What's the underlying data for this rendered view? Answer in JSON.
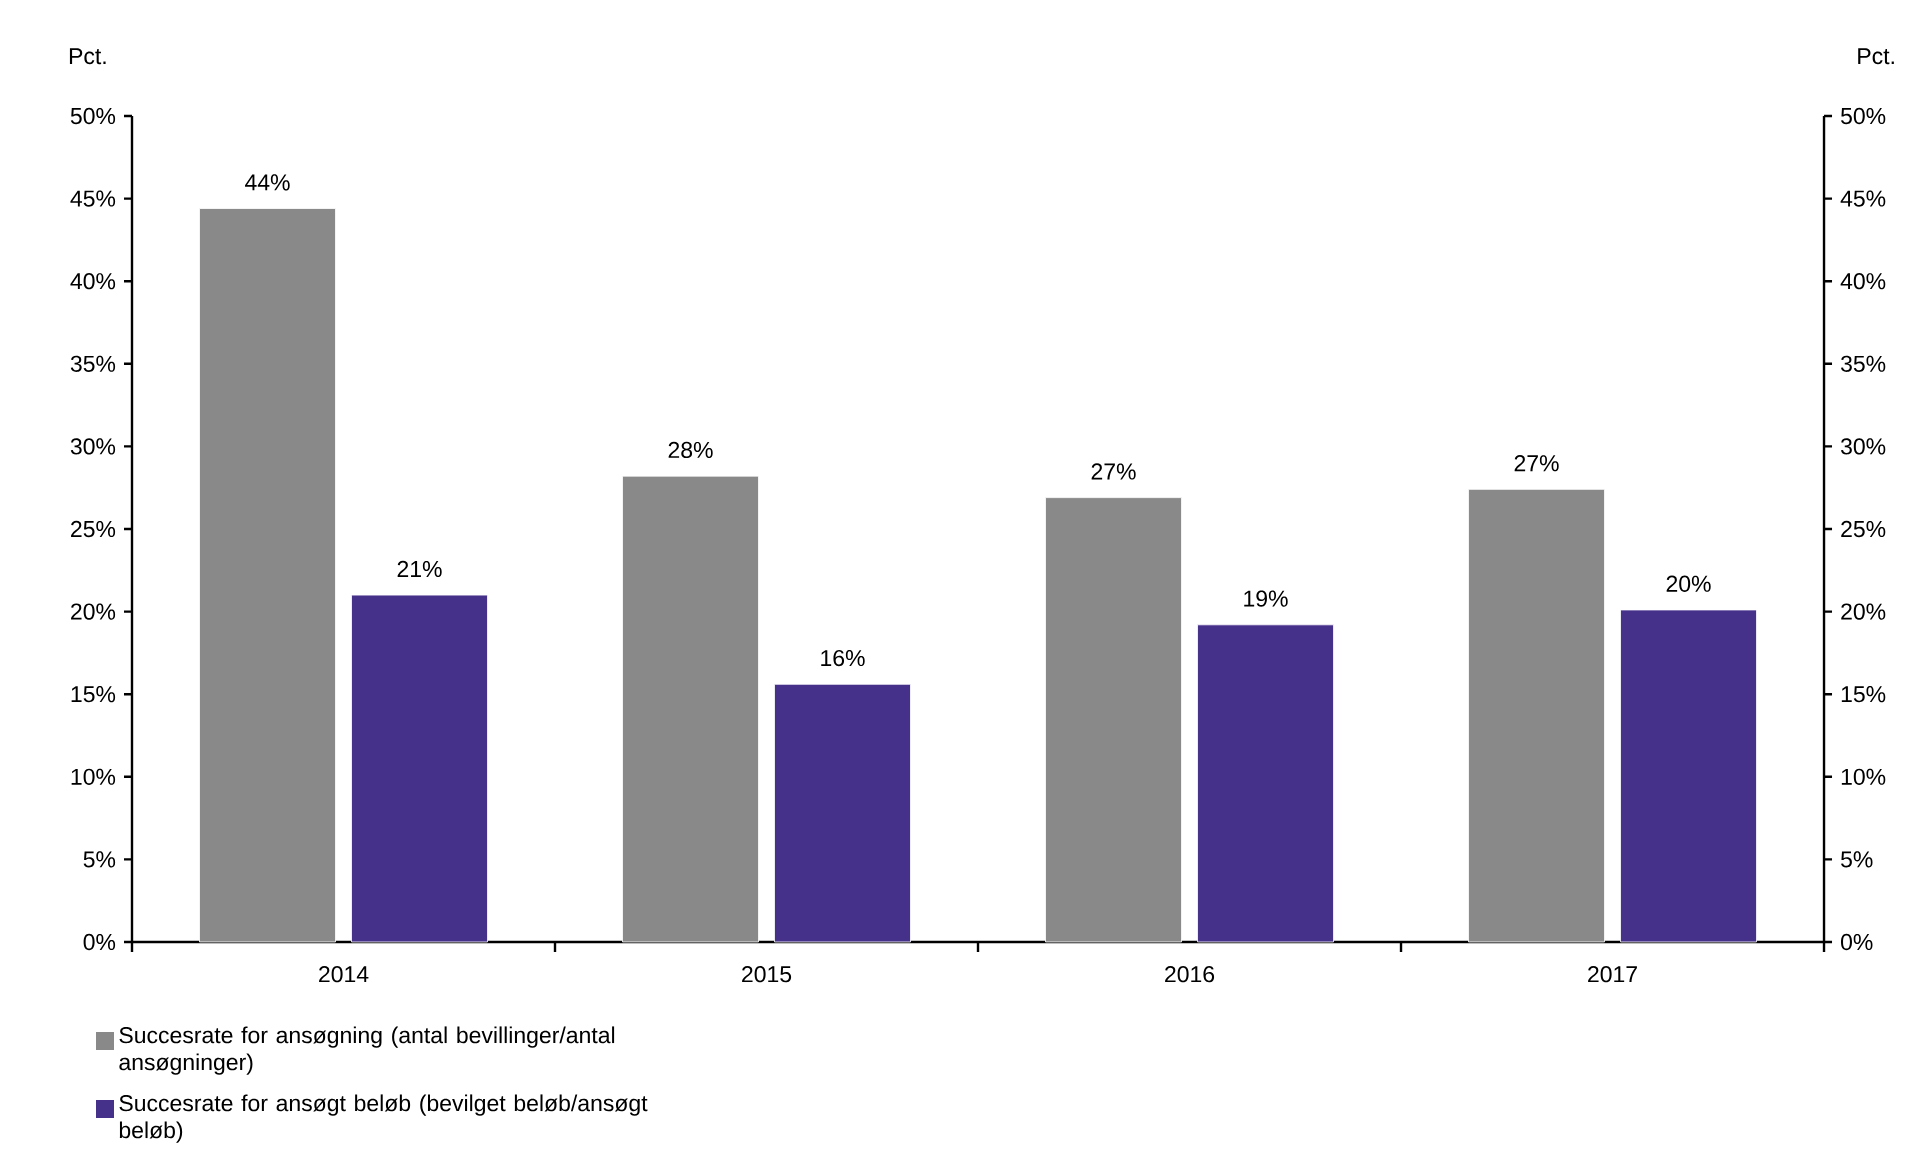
{
  "chart_data": {
    "type": "bar",
    "ylabel": "Pct.",
    "y2label": "Pct.",
    "categories": [
      "2014",
      "2015",
      "2016",
      "2017"
    ],
    "series": [
      {
        "name": "Succesrate for ansøgning (antal bevillinger/antal ansøgninger)",
        "color": "#898989",
        "values": [
          44.4,
          28.2,
          26.9,
          27.4
        ],
        "value_labels": [
          "44%",
          "28%",
          "27%",
          "27%"
        ]
      },
      {
        "name": "Succesrate for ansøgt beløb (bevilget beløb/ansøgt beløb)",
        "color": "#46318a",
        "values": [
          21.0,
          15.6,
          19.2,
          20.1
        ],
        "value_labels": [
          "21%",
          "16%",
          "19%",
          "20%"
        ]
      }
    ],
    "ylim": [
      0,
      50
    ],
    "yticks": [
      {
        "value": 0,
        "label": "0%"
      },
      {
        "value": 5,
        "label": "5%"
      },
      {
        "value": 10,
        "label": "10%"
      },
      {
        "value": 15,
        "label": "15%"
      },
      {
        "value": 20,
        "label": "20%"
      },
      {
        "value": 25,
        "label": "25%"
      },
      {
        "value": 30,
        "label": "30%"
      },
      {
        "value": 35,
        "label": "35%"
      },
      {
        "value": 40,
        "label": "40%"
      },
      {
        "value": 45,
        "label": "45%"
      },
      {
        "value": 50,
        "label": "50%"
      }
    ],
    "y2lim": [
      0,
      50
    ],
    "y2ticks": [
      {
        "value": 0,
        "label": "0%"
      },
      {
        "value": 5,
        "label": "5%"
      },
      {
        "value": 10,
        "label": "10%"
      },
      {
        "value": 15,
        "label": "15%"
      },
      {
        "value": 20,
        "label": "20%"
      },
      {
        "value": 25,
        "label": "25%"
      },
      {
        "value": 30,
        "label": "30%"
      },
      {
        "value": 35,
        "label": "35%"
      },
      {
        "value": 40,
        "label": "40%"
      },
      {
        "value": 45,
        "label": "45%"
      },
      {
        "value": 50,
        "label": "50%"
      }
    ],
    "legend": "bottom",
    "grid": false
  }
}
